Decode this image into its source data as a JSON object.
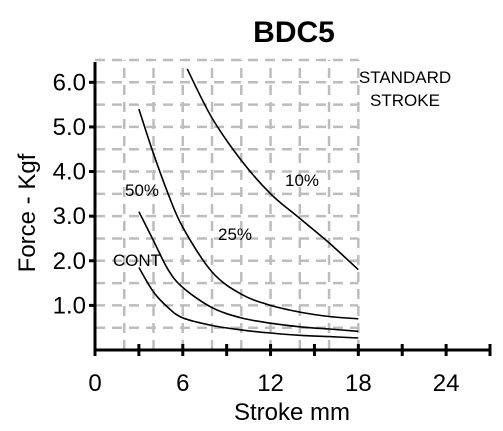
{
  "chart_data": {
    "type": "line",
    "title": "BDC5",
    "xlabel": "Stroke mm",
    "ylabel": "Force - Kgf",
    "xlim": [
      0,
      27
    ],
    "ylim": [
      0,
      6.5
    ],
    "x_ticks": [
      "0",
      "6",
      "12",
      "18",
      "24"
    ],
    "y_ticks": [
      "1.0",
      "2.0",
      "3.0",
      "4.0",
      "5.0",
      "6.0"
    ],
    "grid": true,
    "annotations": [
      "STANDARD",
      "STROKE"
    ],
    "series": [
      {
        "name": "10%",
        "x": [
          6.3,
          8,
          10,
          12,
          14,
          16,
          18
        ],
        "y": [
          6.3,
          5.2,
          4.25,
          3.5,
          2.95,
          2.4,
          1.8
        ]
      },
      {
        "name": "25%",
        "x": [
          3,
          4,
          5,
          6,
          8,
          10,
          12,
          14,
          16,
          18
        ],
        "y": [
          5.4,
          4.4,
          3.5,
          2.75,
          1.75,
          1.25,
          1.0,
          0.85,
          0.75,
          0.7
        ]
      },
      {
        "name": "50%",
        "x": [
          3,
          4,
          5,
          6,
          8,
          10,
          12,
          14,
          16,
          18
        ],
        "y": [
          3.1,
          2.45,
          1.8,
          1.4,
          0.95,
          0.72,
          0.6,
          0.52,
          0.47,
          0.42
        ]
      },
      {
        "name": "CONT",
        "x": [
          3,
          4,
          5,
          6,
          8,
          10,
          12,
          14,
          16,
          18
        ],
        "y": [
          1.85,
          1.3,
          0.95,
          0.72,
          0.55,
          0.45,
          0.38,
          0.33,
          0.3,
          0.27
        ]
      }
    ]
  }
}
